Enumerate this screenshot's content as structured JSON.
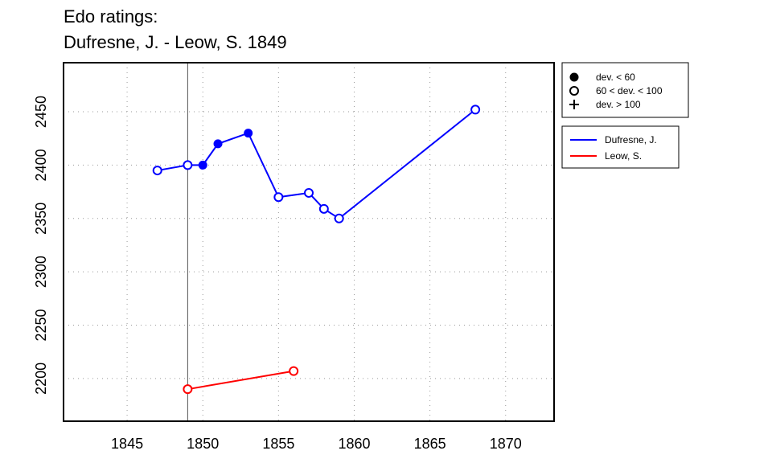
{
  "chart_data": {
    "type": "line",
    "title_line1": "Edo ratings:",
    "title_line2": "Dufresne, J. - Leow, S. 1849",
    "xlabel": "",
    "ylabel": "",
    "xlim": [
      1840.8,
      1873.2
    ],
    "ylim": [
      2160,
      2496
    ],
    "x_ticks": [
      1845,
      1850,
      1855,
      1860,
      1865,
      1870
    ],
    "y_ticks": [
      2200,
      2250,
      2300,
      2350,
      2400,
      2450
    ],
    "grid": true,
    "reference_year": 1849,
    "marker_legend": [
      {
        "marker": "filled-circle",
        "label": "dev. < 60"
      },
      {
        "marker": "open-circle",
        "label": "60 < dev. < 100"
      },
      {
        "marker": "plus",
        "label": "dev. > 100"
      }
    ],
    "legend_position": "right-top",
    "series": [
      {
        "name": "Dufresne, J.",
        "color": "#0000ff",
        "x": [
          1847,
          1849,
          1850,
          1851,
          1853,
          1855,
          1857,
          1858,
          1859,
          1868
        ],
        "y": [
          2395,
          2400,
          2400,
          2420,
          2430,
          2370,
          2374,
          2359,
          2350,
          2452
        ],
        "markers": [
          "open-circle",
          "open-circle",
          "filled-circle",
          "filled-circle",
          "filled-circle",
          "open-circle",
          "open-circle",
          "open-circle",
          "open-circle",
          "open-circle"
        ]
      },
      {
        "name": "Leow, S.",
        "color": "#ff0000",
        "x": [
          1849,
          1856
        ],
        "y": [
          2190,
          2207
        ],
        "markers": [
          "open-circle",
          "open-circle"
        ]
      }
    ]
  }
}
